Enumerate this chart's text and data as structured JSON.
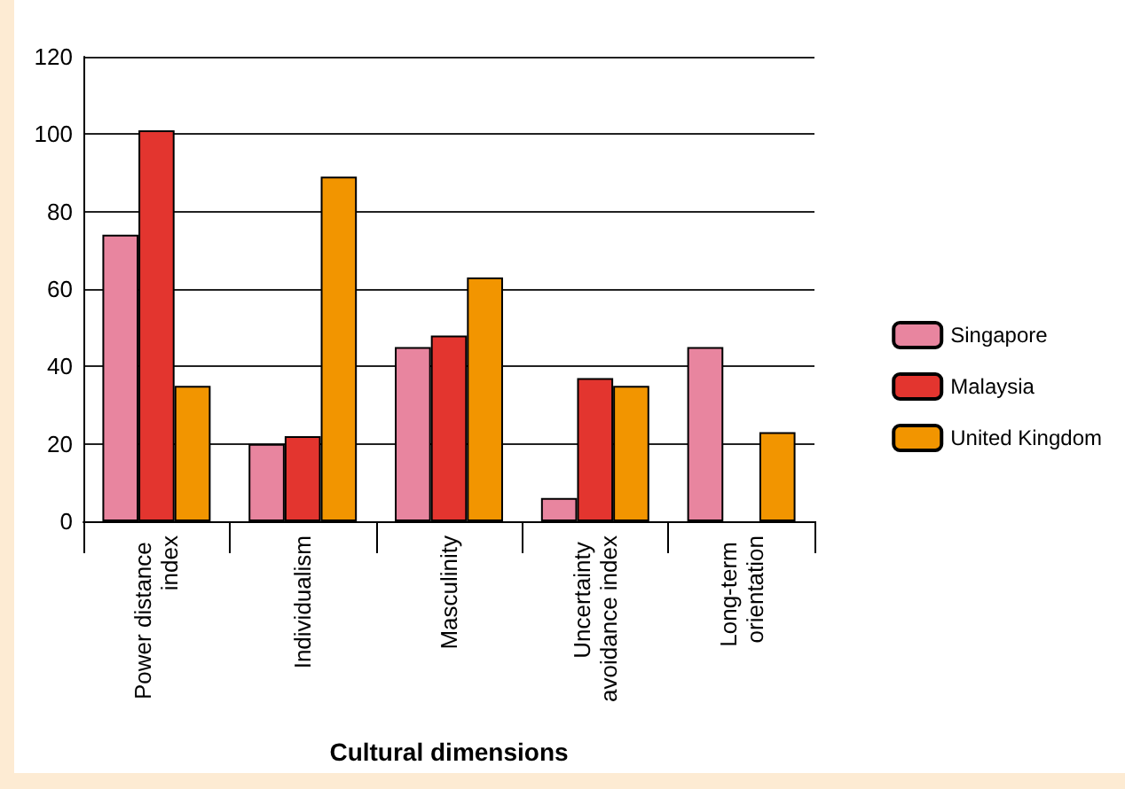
{
  "chart_data": {
    "type": "bar",
    "xlabel": "Cultural dimensions",
    "categories": [
      "Power distance index",
      "Individualism",
      "Masculinity",
      "Uncertainty avoidance index",
      "Long-term orientation"
    ],
    "series": [
      {
        "name": "Singapore",
        "color": "#e8859f",
        "values": [
          74,
          20,
          45,
          6,
          45
        ]
      },
      {
        "name": "Malaysia",
        "color": "#e3352f",
        "values": [
          101,
          22,
          48,
          37,
          null
        ]
      },
      {
        "name": "United Kingdom",
        "color": "#f29500",
        "values": [
          35,
          89,
          63,
          35,
          23
        ]
      }
    ],
    "ylim": [
      0,
      120
    ],
    "yticks": [
      0,
      20,
      40,
      60,
      80,
      100,
      120
    ],
    "grid": "y",
    "legend": "right"
  }
}
